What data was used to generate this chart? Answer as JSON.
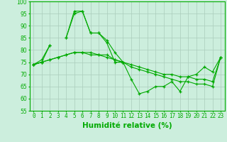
{
  "x": [
    0,
    1,
    2,
    3,
    4,
    5,
    6,
    7,
    8,
    9,
    10,
    11,
    12,
    13,
    14,
    15,
    16,
    17,
    18,
    19,
    20,
    21,
    22,
    23
  ],
  "line1": [
    74,
    75,
    82,
    null,
    85,
    95,
    96,
    87,
    87,
    83,
    75,
    75,
    null,
    null,
    null,
    null,
    null,
    null,
    null,
    null,
    null,
    null,
    null,
    null
  ],
  "line2": [
    74,
    76,
    82,
    null,
    85,
    96,
    96,
    87,
    87,
    84,
    79,
    75,
    68,
    62,
    63,
    65,
    65,
    67,
    63,
    69,
    70,
    73,
    71,
    77
  ],
  "line3": [
    74,
    75,
    76,
    77,
    78,
    79,
    79,
    79,
    78,
    78,
    76,
    75,
    74,
    73,
    72,
    71,
    70,
    70,
    69,
    69,
    68,
    68,
    67,
    77
  ],
  "line4": [
    74,
    75,
    76,
    77,
    78,
    79,
    79,
    78,
    78,
    77,
    76,
    75,
    73,
    72,
    71,
    70,
    69,
    68,
    67,
    67,
    66,
    66,
    65,
    77
  ],
  "bg_color": "#cceedd",
  "grid_color": "#aaccbb",
  "line_color": "#00aa00",
  "ylim": [
    55,
    100
  ],
  "yticks": [
    55,
    60,
    65,
    70,
    75,
    80,
    85,
    90,
    95,
    100
  ],
  "xlabel": "Humidité relative (%)",
  "xlabel_fontsize": 7.5,
  "tick_fontsize": 5.5,
  "lw": 0.8
}
